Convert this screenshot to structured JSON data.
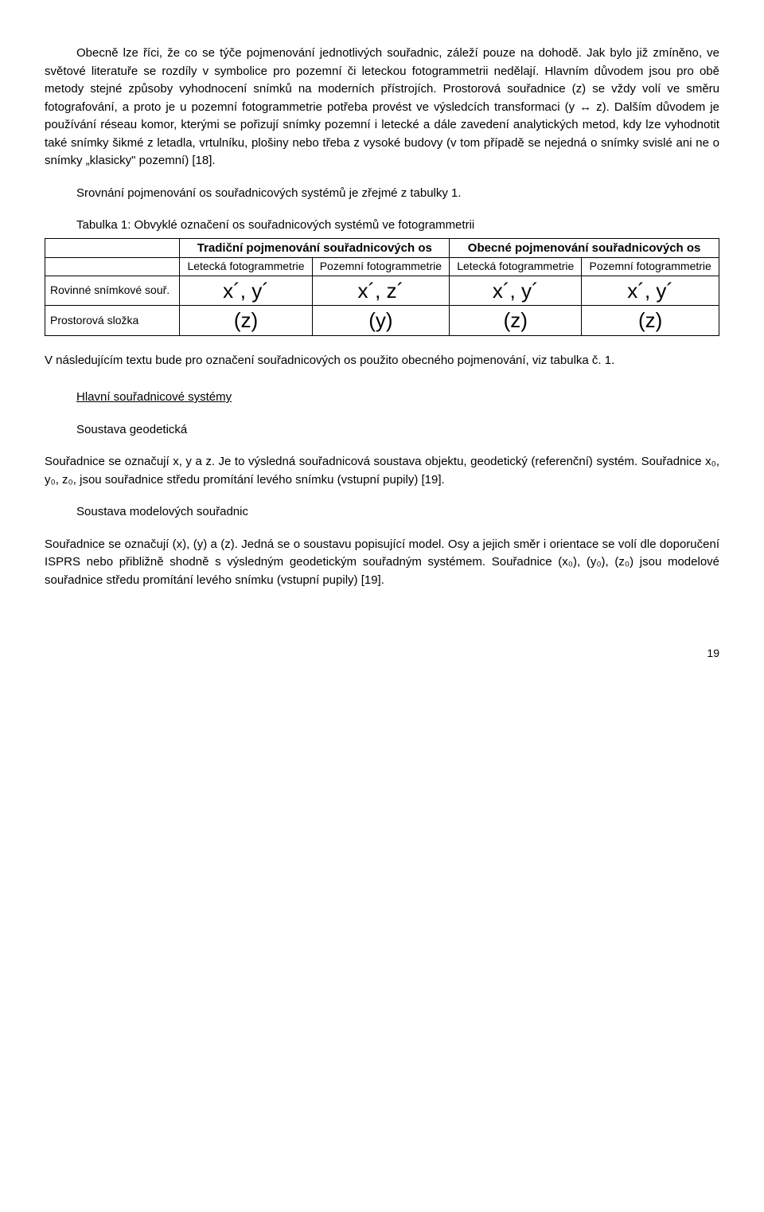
{
  "paragraphs": {
    "p1": "Obecně lze říci, že co se týče pojmenování jednotlivých souřadnic, záleží pouze na dohodě. Jak bylo již zmíněno, ve světové literatuře se rozdíly v symbolice pro pozemní či leteckou fotogrammetrii nedělají. Hlavním důvodem jsou pro obě metody stejné způsoby vyhodnocení snímků na moderních přístrojích. Prostorová souřadnice (z) se vždy volí ve směru fotografování, a proto je u pozemní fotogrammetrie potřeba provést ve výsledcích transformaci (y ↔ z). Dalším důvodem je používání réseau komor, kterými se pořizují snímky pozemní i letecké a dále zavedení analytických metod, kdy lze vyhodnotit také snímky šikmé z letadla, vrtulníku, plošiny nebo třeba z vysoké budovy (v tom případě se nejedná o snímky svislé ani ne o snímky „klasicky\" pozemní) [18].",
    "p2": "Srovnání pojmenování os souřadnicových systémů je zřejmé z tabulky 1.",
    "p3": "V následujícím textu bude pro označení souřadnicových os použito obecného pojmenování, viz tabulka č. 1.",
    "p4": "Souřadnice se označují x, y a z. Je to výsledná souřadnicová soustava objektu, geodetický (referenční) systém. Souřadnice x₀, y₀, z₀, jsou souřadnice středu promítání levého snímku (vstupní pupily) [19].",
    "p5": "Souřadnice se označují (x), (y) a (z). Jedná se o soustavu popisující model. Osy a jejich směr i orientace se volí dle doporučení ISPRS nebo přibližně shodně s výsledným geodetickým souřadným systémem. Souřadnice (x₀), (y₀), (z₀) jsou modelové souřadnice středu promítání levého snímku (vstupní pupily) [19]."
  },
  "tableCaption": "Tabulka 1: Obvyklé označení os souřadnicových systémů ve fotogrammetrii",
  "table": {
    "topHeaders": {
      "left": "Tradiční pojmenování souřadnicových os",
      "right": "Obecné pojmenování souřadnicových os"
    },
    "subHeaders": {
      "h1": "Letecká fotogrammetrie",
      "h2": "Pozemní fotogrammetrie",
      "h3": "Letecká fotogrammetrie",
      "h4": "Pozemní fotogrammetrie"
    },
    "rows": {
      "r1": {
        "label": "Rovinné snímkové souř.",
        "c1": "x´, y´",
        "c2": "x´, z´",
        "c3": "x´, y´",
        "c4": "x´, y´"
      },
      "r2": {
        "label": "Prostorová složka",
        "c1": "(z)",
        "c2": "(y)",
        "c3": "(z)",
        "c4": "(z)"
      }
    }
  },
  "headings": {
    "h1": "Hlavní souřadnicové systémy",
    "h2": "Soustava geodetická",
    "h3": "Soustava modelových souřadnic"
  },
  "pageNumber": "19"
}
